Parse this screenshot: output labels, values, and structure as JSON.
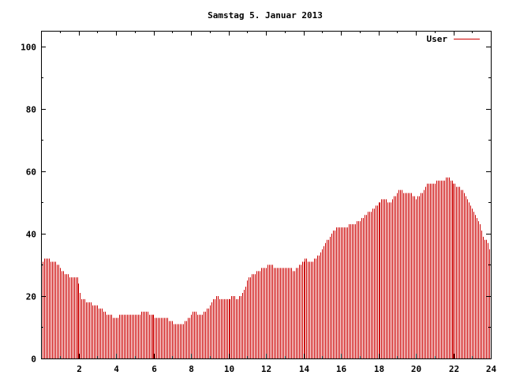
{
  "chart_data": {
    "type": "bar",
    "title": "Samstag 5. Januar 2013",
    "xlabel": "",
    "ylabel": "",
    "xlim": [
      0,
      24
    ],
    "ylim": [
      0,
      105
    ],
    "xticks": [
      2,
      4,
      6,
      8,
      10,
      12,
      14,
      16,
      18,
      20,
      22,
      24
    ],
    "yticks": [
      0,
      20,
      40,
      60,
      80,
      100
    ],
    "grid": false,
    "legend": "top-right",
    "series": [
      {
        "name": "User",
        "color": "#cc0000",
        "keyframes": [
          [
            0.0,
            31
          ],
          [
            0.3,
            32
          ],
          [
            0.6,
            31
          ],
          [
            0.9,
            30
          ],
          [
            1.1,
            28
          ],
          [
            1.3,
            27
          ],
          [
            1.6,
            26
          ],
          [
            1.8,
            26
          ],
          [
            1.9,
            27
          ],
          [
            2.1,
            20
          ],
          [
            2.2,
            19
          ],
          [
            2.5,
            18
          ],
          [
            2.9,
            17
          ],
          [
            3.2,
            16
          ],
          [
            3.6,
            14
          ],
          [
            4.0,
            13
          ],
          [
            4.3,
            14
          ],
          [
            4.7,
            14
          ],
          [
            5.1,
            14
          ],
          [
            5.5,
            15
          ],
          [
            5.9,
            14
          ],
          [
            6.2,
            13
          ],
          [
            6.6,
            13
          ],
          [
            6.9,
            12
          ],
          [
            7.1,
            11
          ],
          [
            7.5,
            11
          ],
          [
            7.9,
            13
          ],
          [
            8.1,
            15
          ],
          [
            8.5,
            14
          ],
          [
            8.7,
            15
          ],
          [
            9.0,
            17
          ],
          [
            9.3,
            20
          ],
          [
            9.6,
            19
          ],
          [
            10.0,
            19
          ],
          [
            10.2,
            20
          ],
          [
            10.5,
            19
          ],
          [
            10.8,
            21
          ],
          [
            11.0,
            25
          ],
          [
            11.3,
            27
          ],
          [
            11.6,
            28
          ],
          [
            11.9,
            29
          ],
          [
            12.2,
            30
          ],
          [
            12.5,
            29
          ],
          [
            12.9,
            29
          ],
          [
            13.2,
            29
          ],
          [
            13.5,
            28
          ],
          [
            13.8,
            30
          ],
          [
            14.1,
            32
          ],
          [
            14.4,
            31
          ],
          [
            14.7,
            32
          ],
          [
            15.0,
            35
          ],
          [
            15.3,
            38
          ],
          [
            15.5,
            40
          ],
          [
            15.8,
            42
          ],
          [
            16.2,
            42
          ],
          [
            16.6,
            43
          ],
          [
            17.0,
            44
          ],
          [
            17.3,
            46
          ],
          [
            17.7,
            48
          ],
          [
            18.0,
            50
          ],
          [
            18.3,
            51
          ],
          [
            18.6,
            50
          ],
          [
            18.9,
            52
          ],
          [
            19.1,
            54
          ],
          [
            19.4,
            53
          ],
          [
            19.7,
            53
          ],
          [
            20.0,
            51
          ],
          [
            20.3,
            53
          ],
          [
            20.6,
            56
          ],
          [
            20.9,
            56
          ],
          [
            21.1,
            57
          ],
          [
            21.4,
            57
          ],
          [
            21.7,
            58
          ],
          [
            22.0,
            56
          ],
          [
            22.3,
            55
          ],
          [
            22.5,
            54
          ],
          [
            22.8,
            50
          ],
          [
            23.1,
            47
          ],
          [
            23.4,
            43
          ],
          [
            23.6,
            39
          ],
          [
            23.8,
            37
          ],
          [
            24.0,
            34
          ]
        ]
      }
    ]
  }
}
